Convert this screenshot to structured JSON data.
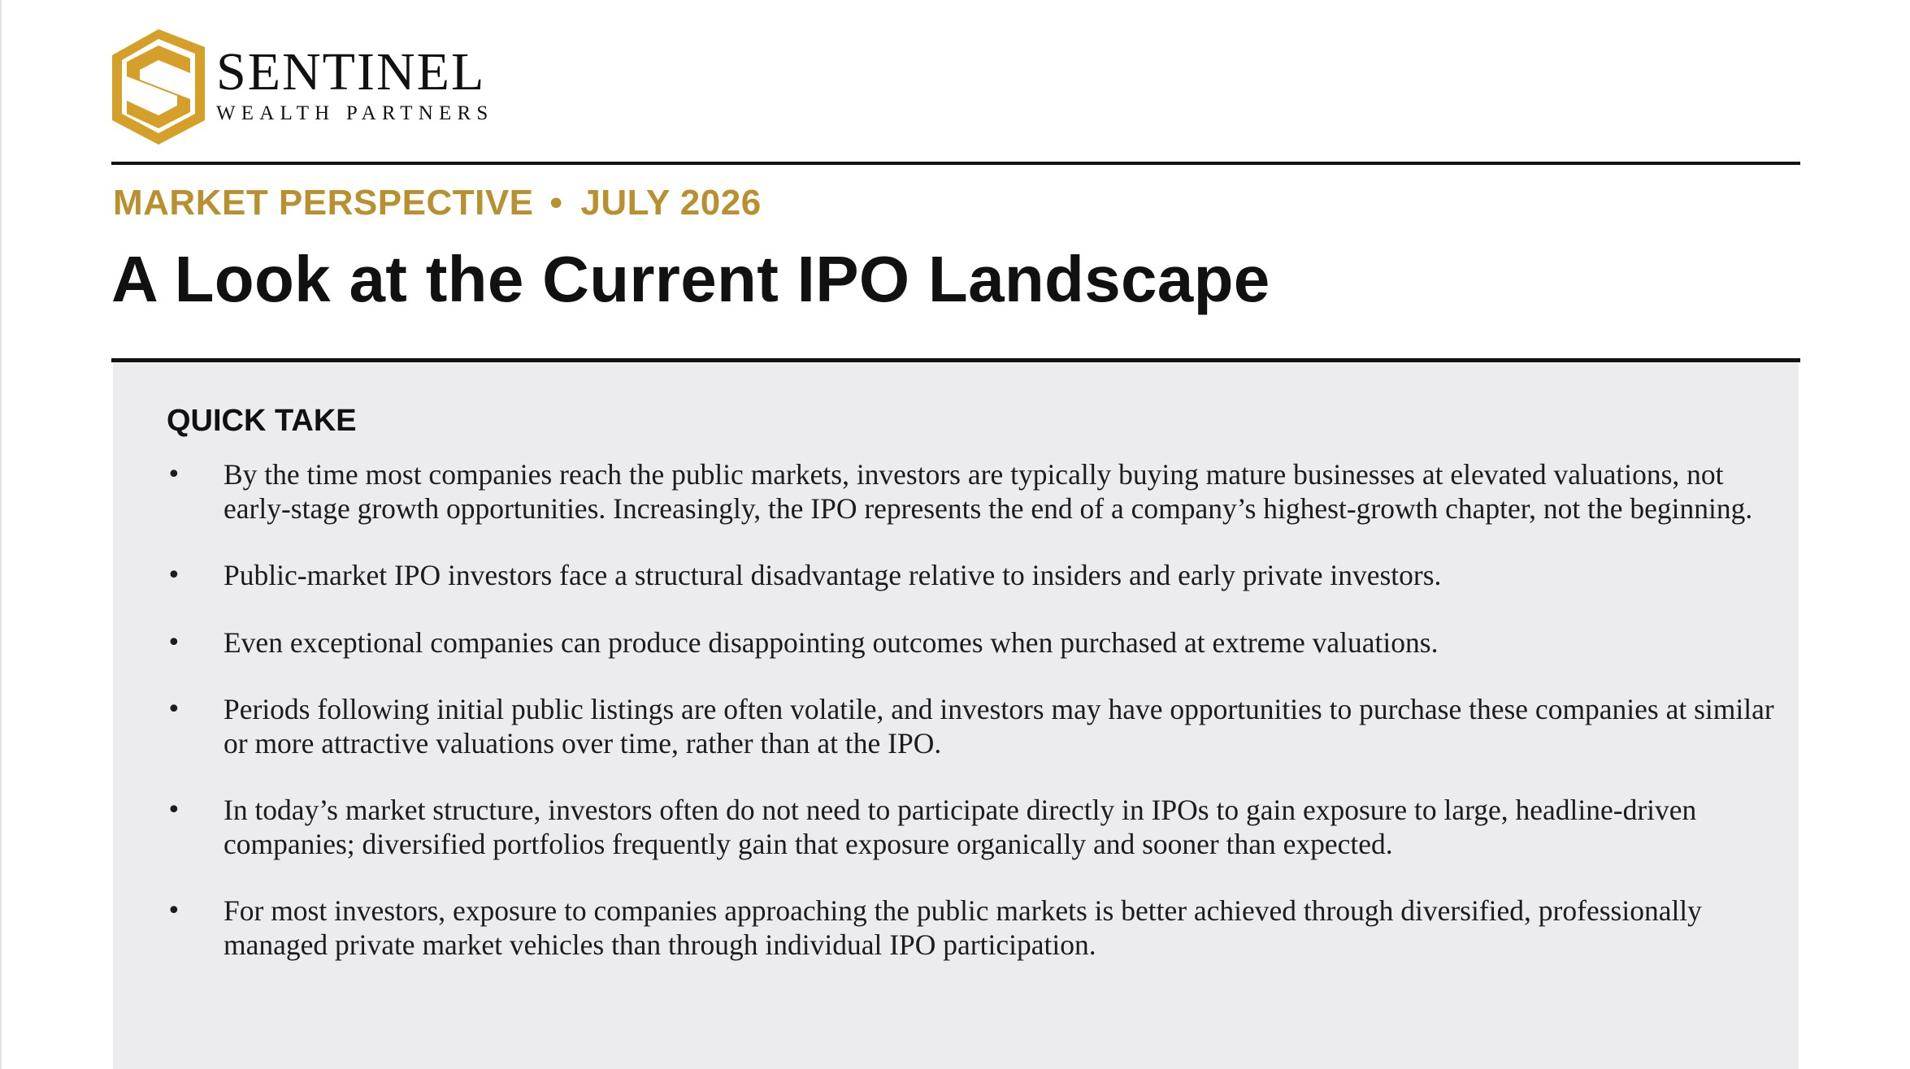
{
  "brand": {
    "name": "SENTINEL",
    "subtitle": "WEALTH PARTNERS",
    "logo_icon": "shield-s-logo-icon",
    "gold_color": "#d4a02a"
  },
  "header": {
    "kicker_left": "MARKET PERSPECTIVE",
    "kicker_separator": "•",
    "kicker_right": "JULY 2026",
    "title": "A Look at the Current IPO Landscape",
    "accent_color": "#b8902f"
  },
  "quick_take": {
    "heading": "QUICK TAKE",
    "bullet_mark": "•",
    "items": [
      {
        "text": "By the time most companies reach the public markets, investors are typically buying mature businesses at elevated valuations, not early-stage growth opportunities. Increasingly, the IPO represents the end of a company’s highest-growth chapter, not the beginning."
      },
      {
        "text": "Public-market IPO investors face a structural disadvantage relative to insiders and early private investors."
      },
      {
        "text": "Even exceptional companies can produce disappointing outcomes when purchased at extreme valuations."
      },
      {
        "text": "Periods following initial public listings are often volatile, and investors may have opportunities to purchase these companies at similar or more attractive valuations over time, rather than at the IPO."
      },
      {
        "text": "In today’s market structure, investors often do not need to participate directly in IPOs to gain exposure to large, headline-driven companies; diversified portfolios frequently gain that exposure organically and sooner than expected."
      },
      {
        "text": "For most investors, exposure to companies approaching the public markets is better achieved through diversified, professionally managed private market vehicles than through individual IPO participation."
      }
    ]
  }
}
